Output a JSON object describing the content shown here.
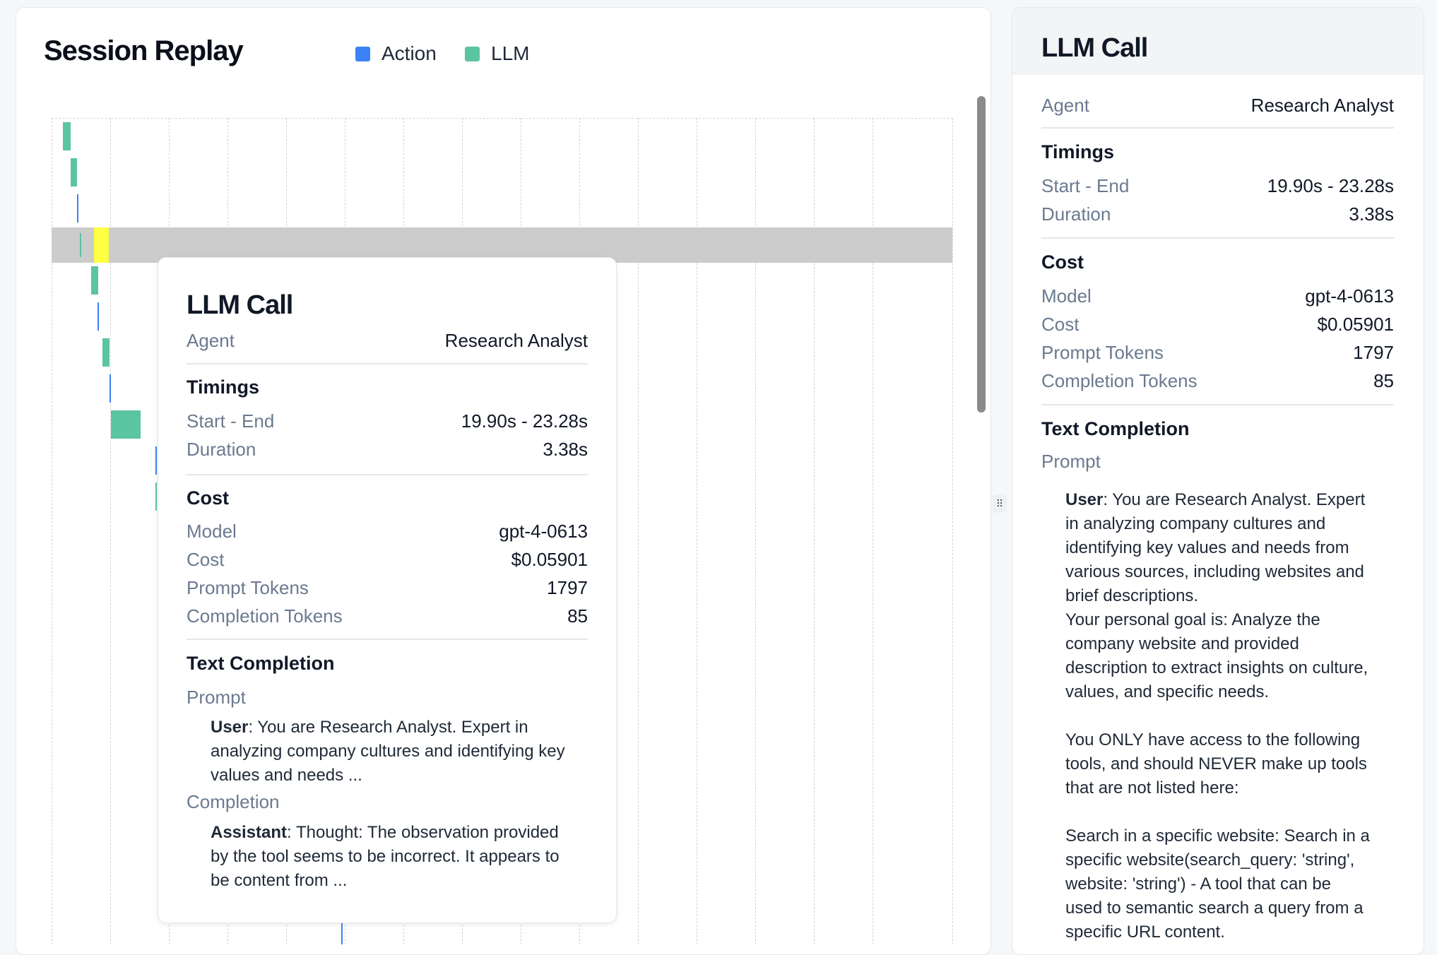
{
  "replay": {
    "title": "Session Replay",
    "legend": [
      {
        "label": "Action",
        "color": "#3b82f6"
      },
      {
        "label": "LLM",
        "color": "#5bc4a0"
      }
    ],
    "events": [
      "llm",
      "llm",
      "action",
      "llm",
      "llm",
      "action",
      "llm",
      "action",
      "llm",
      "action",
      "llm"
    ],
    "selected_index": 3,
    "highlight_color": "#ffff44"
  },
  "tooltip": {
    "title": "LLM Call",
    "agent_label": "Agent",
    "agent": "Research Analyst",
    "timings_heading": "Timings",
    "start_end_label": "Start - End",
    "start_end": "19.90s - 23.28s",
    "duration_label": "Duration",
    "duration": "3.38s",
    "cost_heading": "Cost",
    "model_label": "Model",
    "model": "gpt-4-0613",
    "cost_label": "Cost",
    "cost": "$0.05901",
    "prompt_tokens_label": "Prompt Tokens",
    "prompt_tokens": "1797",
    "completion_tokens_label": "Completion Tokens",
    "completion_tokens": "85",
    "text_heading": "Text Completion",
    "prompt_label": "Prompt",
    "user_role": "User",
    "prompt_lines": [
      ": You are Research Analyst. Expert in",
      "analyzing company cultures and identifying key",
      "values and needs ..."
    ],
    "completion_label": "Completion",
    "assistant_role": "Assistant",
    "completion_lines": [
      ": Thought: The observation provided",
      "by the tool seems to be incorrect. It appears to",
      "be content from ..."
    ]
  },
  "detail": {
    "title": "LLM Call",
    "agent_label": "Agent",
    "agent": "Research Analyst",
    "timings_heading": "Timings",
    "start_end_label": "Start - End",
    "start_end": "19.90s - 23.28s",
    "duration_label": "Duration",
    "duration": "3.38s",
    "cost_heading": "Cost",
    "model_label": "Model",
    "model": "gpt-4-0613",
    "cost_label": "Cost",
    "cost": "$0.05901",
    "prompt_tokens_label": "Prompt Tokens",
    "prompt_tokens": "1797",
    "completion_tokens_label": "Completion Tokens",
    "completion_tokens": "85",
    "text_heading": "Text Completion",
    "prompt_label": "Prompt",
    "user_role": "User",
    "prompt_lines": [
      ": You are Research Analyst. Expert",
      "in analyzing company cultures and",
      "identifying key values and needs from",
      "various sources, including websites and",
      "brief descriptions.",
      "Your personal goal is: Analyze the",
      "company website and provided",
      "description to extract insights on culture,",
      "values, and specific needs.",
      "",
      "You ONLY have access to the following",
      "tools, and should NEVER make up tools",
      "that are not listed here:",
      "",
      "Search in a specific website: Search in a",
      "specific website(search_query: 'string',",
      "website: 'string') - A tool that can be",
      "used to semantic search a query from a",
      "specific URL content."
    ]
  }
}
